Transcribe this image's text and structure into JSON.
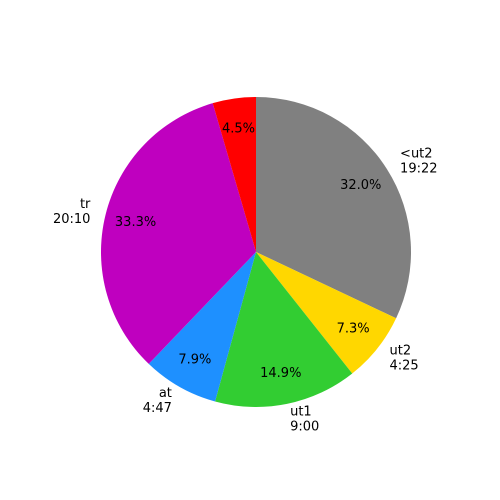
{
  "chart_data": {
    "type": "pie",
    "categories": [
      [
        "<ut2",
        "19:22"
      ],
      [
        "ut2",
        "4:25"
      ],
      [
        "ut1",
        "9:00"
      ],
      [
        "at",
        "4:47"
      ],
      [
        "tr",
        "20:10"
      ],
      null
    ],
    "values": [
      32.0,
      7.3,
      14.9,
      7.9,
      33.3,
      4.5
    ],
    "value_labels": [
      "32.0%",
      "7.3%",
      "14.9%",
      "7.9%",
      "33.3%",
      "4.5%"
    ],
    "colors": [
      "#808080",
      "#ffd700",
      "#32cd32",
      "#1e90ff",
      "#bf00bf",
      "#ff0000"
    ],
    "start_angle": 90,
    "clockwise": true
  }
}
